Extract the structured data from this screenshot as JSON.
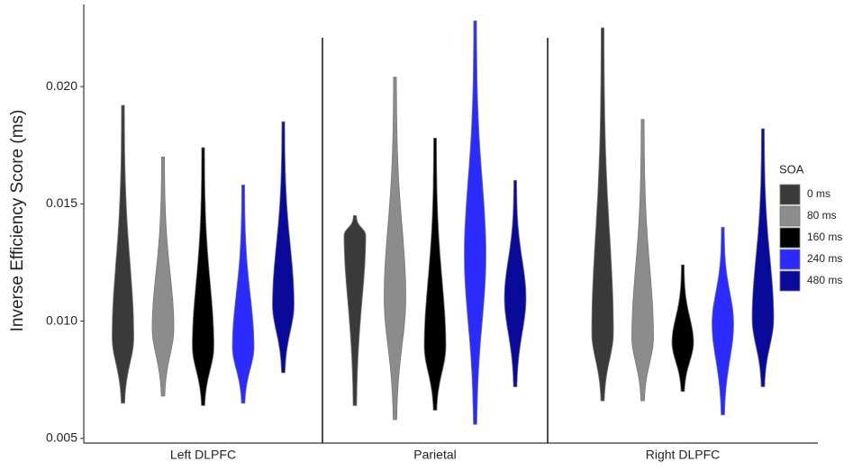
{
  "chart_data": {
    "type": "violin",
    "ylabel": "Inverse Efficiency Score (ms)",
    "categories": [
      "Left DLPFC",
      "Parietal",
      "Right DLPFC"
    ],
    "legend_title": "SOA",
    "legend_position": "right",
    "ylim": [
      0.0048,
      0.0235
    ],
    "yticks": [
      0.005,
      {
        "value": 0.01,
        "label": "0.010"
      },
      0.015,
      {
        "value": 0.02,
        "label": "0.020"
      }
    ],
    "series": [
      {
        "name": "0 ms",
        "color": "#3a3a3a",
        "min": [
          0.0065,
          0.0064,
          0.0066
        ],
        "mode": [
          0.0093,
          0.0137,
          0.0095
        ],
        "max": [
          0.0192,
          0.0145,
          0.0225
        ]
      },
      {
        "name": "80 ms",
        "color": "#8c8c8c",
        "min": [
          0.0068,
          0.0058,
          0.0066
        ],
        "mode": [
          0.0097,
          0.011,
          0.0093
        ],
        "max": [
          0.017,
          0.0204,
          0.0186
        ]
      },
      {
        "name": "160 ms",
        "color": "#000000",
        "min": [
          0.0064,
          0.0062,
          0.007
        ],
        "mode": [
          0.0089,
          0.0089,
          0.0091
        ],
        "max": [
          0.0174,
          0.0178,
          0.0124
        ]
      },
      {
        "name": "240 ms",
        "color": "#2b2bff",
        "min": [
          0.0065,
          0.0056,
          0.006
        ],
        "mode": [
          0.0089,
          0.0128,
          0.0099
        ],
        "max": [
          0.0158,
          0.0228,
          0.014
        ]
      },
      {
        "name": "480 ms",
        "color": "#0a0a9a",
        "min": [
          0.0078,
          0.0072,
          0.0072
        ],
        "mode": [
          0.0107,
          0.011,
          0.0101
        ],
        "max": [
          0.0185,
          0.016,
          0.0182
        ]
      }
    ]
  }
}
